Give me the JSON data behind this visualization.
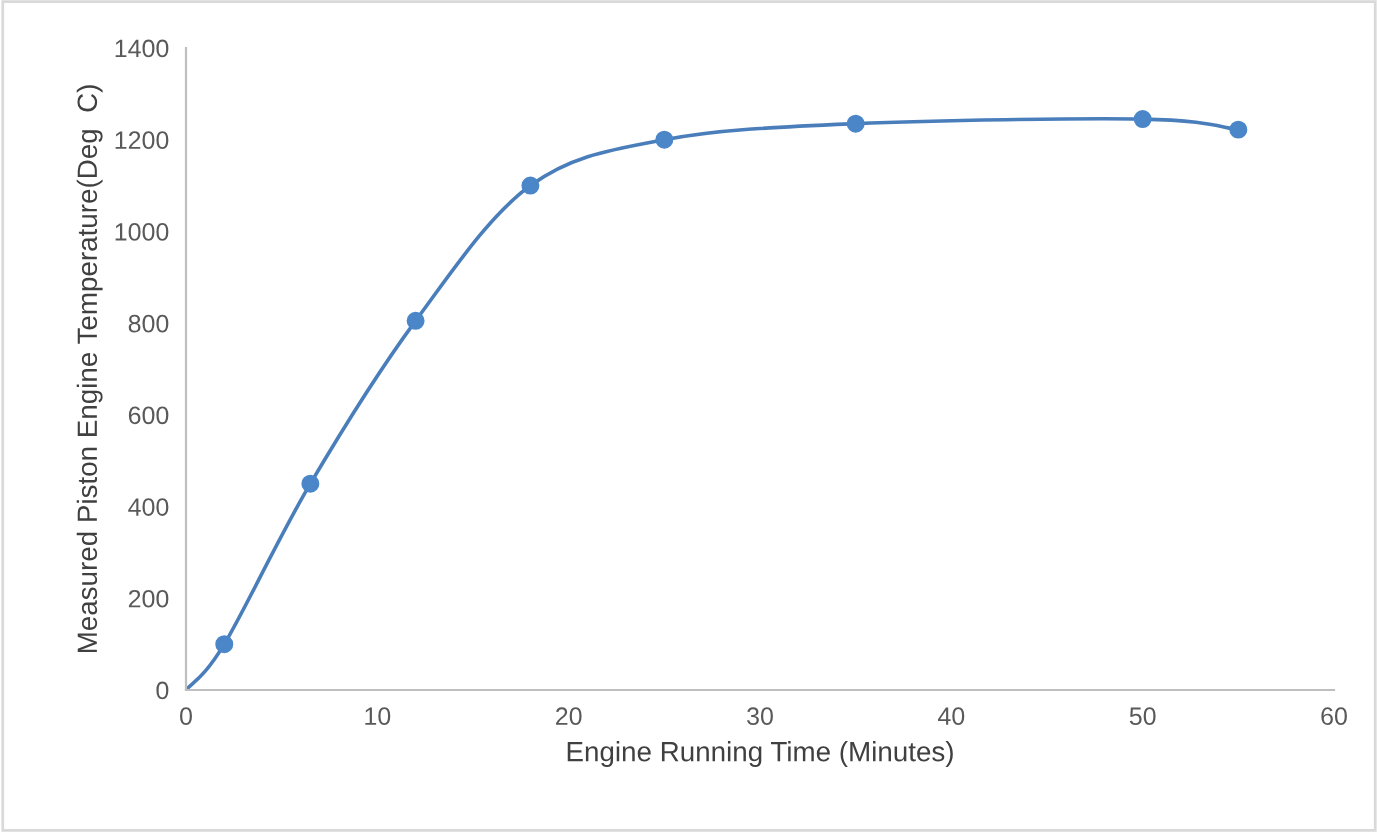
{
  "chart_data": {
    "type": "scatter",
    "xlabel": "Engine Running Time (Minutes)",
    "ylabel": "Measured Piston Engine Temperature(Deg  C)",
    "xlim": [
      0,
      60
    ],
    "xticks": [
      0,
      10,
      20,
      30,
      40,
      50,
      60
    ],
    "ylim": [
      0,
      1400
    ],
    "yticks": [
      0,
      200,
      400,
      600,
      800,
      1000,
      1200,
      1400
    ],
    "grid": false,
    "legend": false,
    "series": [
      {
        "type": "line",
        "color": "#4a7ebb",
        "marker": "none",
        "x": [
          0,
          2,
          6.5,
          12,
          18,
          25,
          35,
          50,
          55
        ],
        "values": [
          0,
          100,
          450,
          805,
          1100,
          1200,
          1235,
          1245,
          1222
        ]
      },
      {
        "color": "#4a86c8",
        "marker": "circle",
        "x": [
          2,
          6.5,
          12,
          18,
          25,
          35,
          50,
          55
        ],
        "values": [
          100,
          450,
          805,
          1100,
          1200,
          1235,
          1245,
          1222
        ]
      }
    ]
  }
}
